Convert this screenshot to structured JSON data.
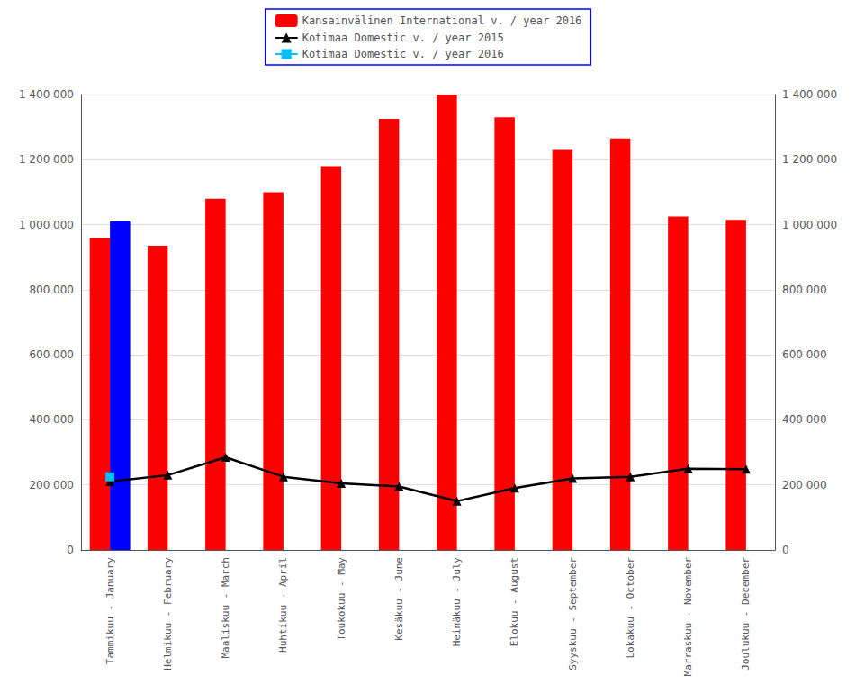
{
  "chart_data": {
    "type": "bar",
    "categories": [
      "Tammikuu - January",
      "Helmikuu - February",
      "Maaliskuu - March",
      "Huhtikuu - April",
      "Toukokuu - May",
      "Kesäkuu - June",
      "Heinäkuu - July",
      "Elokuu - August",
      "Syyskuu - September",
      "Lokakuu - October",
      "Marraskuu - November",
      "Joulukuu - December"
    ],
    "series": [
      {
        "name": "Kansainvälinen International v. / year 2016",
        "type": "bar",
        "color": "#FF0000",
        "values": [
          960000,
          935000,
          1080000,
          1100000,
          1180000,
          1325000,
          1400000,
          1330000,
          1230000,
          1265000,
          1025000,
          1015000
        ]
      },
      {
        "type": "bar",
        "color": "#0000FF",
        "values": [
          1010000,
          null,
          null,
          null,
          null,
          null,
          null,
          null,
          null,
          null,
          null,
          null
        ]
      },
      {
        "name": "Kotimaa Domestic v. / year 2015",
        "type": "line",
        "color": "#000000",
        "marker": "triangle",
        "values": [
          210000,
          230000,
          285000,
          225000,
          205000,
          195000,
          150000,
          190000,
          220000,
          225000,
          250000,
          248000
        ]
      },
      {
        "name": "Kotimaa Domestic v. / year 2016",
        "type": "line",
        "color": "#00BFFF",
        "marker": "square",
        "values": [
          225000,
          null,
          null,
          null,
          null,
          null,
          null,
          null,
          null,
          null,
          null,
          null
        ]
      }
    ],
    "ylim": [
      0,
      1400000
    ],
    "yticks": [
      0,
      {
        "value": 200000,
        "label": "200 000"
      },
      {
        "value": 400000,
        "label": "400 000"
      },
      {
        "value": 600000,
        "label": "600 000"
      },
      {
        "value": 800000,
        "label": "800 000"
      },
      {
        "value": 1000000,
        "label": "1 000 000"
      },
      {
        "value": 1200000,
        "label": "1 200 000"
      },
      {
        "value": 1400000,
        "label": "1 400 000"
      }
    ],
    "y2lim": [
      0,
      1400000
    ],
    "y2ticks": [
      0,
      {
        "value": 200000,
        "label": "200 000"
      },
      {
        "value": 400000,
        "label": "400 000"
      },
      {
        "value": 600000,
        "label": "600 000"
      },
      {
        "value": 800000,
        "label": "800 000"
      },
      {
        "value": 1000000,
        "label": "1 000 000"
      },
      {
        "value": 1200000,
        "label": "1 200 000"
      },
      {
        "value": 1400000,
        "label": "1 400 000"
      }
    ],
    "grid": true,
    "legend": "top"
  }
}
